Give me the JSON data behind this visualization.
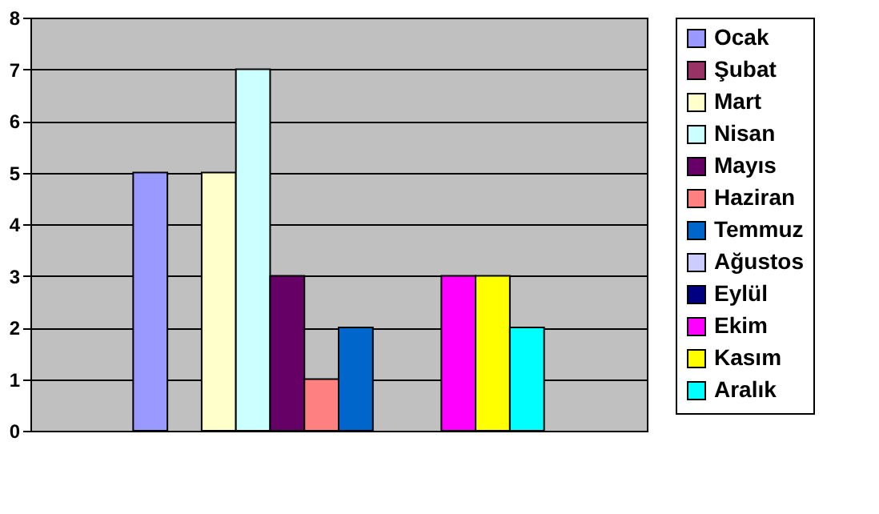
{
  "chart_data": {
    "type": "bar",
    "categories": [
      null
    ],
    "series": [
      {
        "name": "Ocak",
        "color": "#9999ff",
        "values": [
          5
        ]
      },
      {
        "name": "Şubat",
        "color": "#993366",
        "values": [
          0
        ]
      },
      {
        "name": "Mart",
        "color": "#ffffcc",
        "values": [
          5
        ]
      },
      {
        "name": "Nisan",
        "color": "#ccffff",
        "values": [
          7
        ]
      },
      {
        "name": "Mayıs",
        "color": "#660066",
        "values": [
          3
        ]
      },
      {
        "name": "Haziran",
        "color": "#ff8080",
        "values": [
          1
        ]
      },
      {
        "name": "Temmuz",
        "color": "#0066cc",
        "values": [
          2
        ]
      },
      {
        "name": "Ağustos",
        "color": "#ccccff",
        "values": [
          0
        ]
      },
      {
        "name": "Eylül",
        "color": "#000080",
        "values": [
          0
        ]
      },
      {
        "name": "Ekim",
        "color": "#ff00ff",
        "values": [
          3
        ]
      },
      {
        "name": "Kasım",
        "color": "#ffff00",
        "values": [
          3
        ]
      },
      {
        "name": "Aralık",
        "color": "#00ffff",
        "values": [
          2
        ]
      }
    ],
    "ylim": [
      0,
      8
    ],
    "yticks": [
      0,
      1,
      2,
      3,
      4,
      5,
      6,
      7,
      8
    ],
    "grid": "y",
    "legend": "right"
  }
}
